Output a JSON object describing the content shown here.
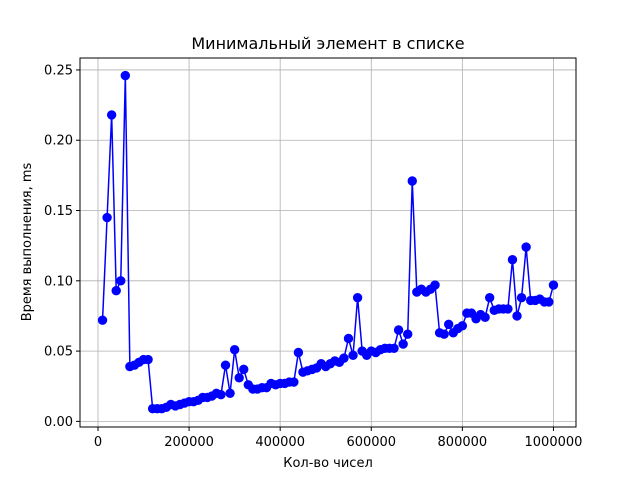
{
  "chart_data": {
    "type": "line",
    "title": "Минимальный элемент в списке",
    "xlabel": "Кол-во чисел",
    "ylabel": "Время выполнения, ms",
    "xlim": [
      -39500,
      1049500
    ],
    "ylim": [
      -0.004,
      0.2585
    ],
    "grid": true,
    "xticks": [
      0,
      200000,
      400000,
      600000,
      800000,
      1000000
    ],
    "xtick_labels": [
      "0",
      "200000",
      "400000",
      "600000",
      "800000",
      "1000000"
    ],
    "yticks": [
      0.0,
      0.05,
      0.1,
      0.15,
      0.2,
      0.25
    ],
    "ytick_labels": [
      "0.00",
      "0.05",
      "0.10",
      "0.15",
      "0.20",
      "0.25"
    ],
    "series": [
      {
        "color": "#0000ff",
        "marker": "circle",
        "x": [
          10000,
          20000,
          30000,
          40000,
          50000,
          60000,
          70000,
          80000,
          90000,
          100000,
          110000,
          120000,
          130000,
          140000,
          150000,
          160000,
          170000,
          180000,
          190000,
          200000,
          210000,
          220000,
          230000,
          240000,
          250000,
          260000,
          270000,
          280000,
          290000,
          300000,
          310000,
          320000,
          330000,
          340000,
          350000,
          360000,
          370000,
          380000,
          390000,
          400000,
          410000,
          420000,
          430000,
          440000,
          450000,
          460000,
          470000,
          480000,
          490000,
          500000,
          510000,
          520000,
          530000,
          540000,
          550000,
          560000,
          570000,
          580000,
          590000,
          600000,
          610000,
          620000,
          630000,
          640000,
          650000,
          660000,
          670000,
          680000,
          690000,
          700000,
          710000,
          720000,
          730000,
          740000,
          750000,
          760000,
          770000,
          780000,
          790000,
          800000,
          810000,
          820000,
          830000,
          840000,
          850000,
          860000,
          870000,
          880000,
          890000,
          900000,
          910000,
          920000,
          930000,
          940000,
          950000,
          960000,
          970000,
          980000,
          990000,
          1000000
        ],
        "y": [
          0.072,
          0.145,
          0.218,
          0.093,
          0.1,
          0.246,
          0.039,
          0.04,
          0.042,
          0.044,
          0.044,
          0.009,
          0.009,
          0.009,
          0.01,
          0.012,
          0.011,
          0.012,
          0.013,
          0.014,
          0.014,
          0.015,
          0.017,
          0.017,
          0.018,
          0.02,
          0.019,
          0.04,
          0.02,
          0.051,
          0.031,
          0.037,
          0.026,
          0.023,
          0.023,
          0.024,
          0.024,
          0.027,
          0.026,
          0.027,
          0.027,
          0.028,
          0.028,
          0.049,
          0.035,
          0.036,
          0.037,
          0.038,
          0.041,
          0.039,
          0.041,
          0.043,
          0.042,
          0.045,
          0.059,
          0.047,
          0.088,
          0.05,
          0.047,
          0.05,
          0.049,
          0.051,
          0.052,
          0.052,
          0.052,
          0.065,
          0.055,
          0.062,
          0.171,
          0.092,
          0.094,
          0.092,
          0.094,
          0.097,
          0.063,
          0.062,
          0.069,
          0.063,
          0.066,
          0.068,
          0.077,
          0.077,
          0.073,
          0.076,
          0.074,
          0.088,
          0.079,
          0.08,
          0.08,
          0.08,
          0.115,
          0.075,
          0.088,
          0.124,
          0.086,
          0.086,
          0.087,
          0.085,
          0.085,
          0.097
        ]
      }
    ]
  }
}
